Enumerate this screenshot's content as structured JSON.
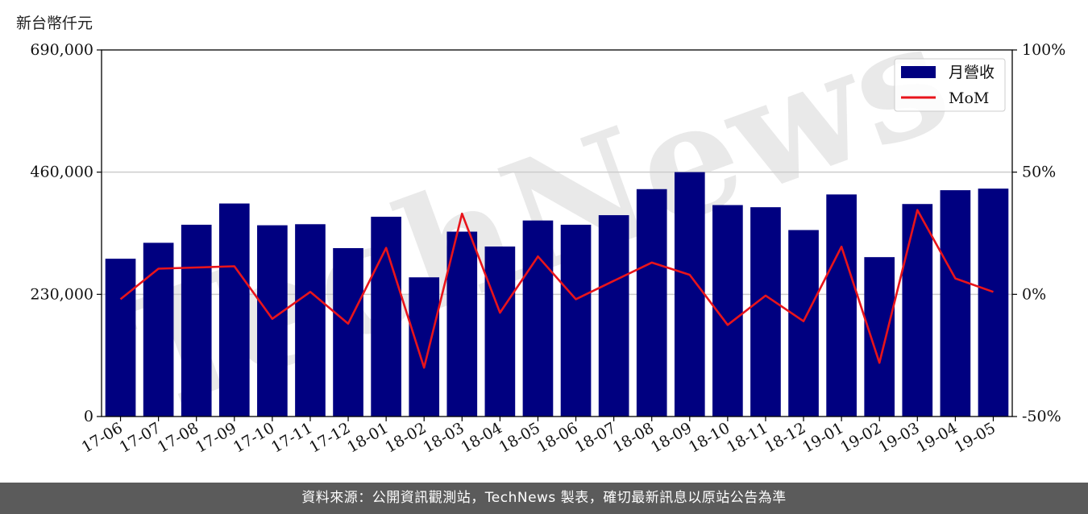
{
  "unit_label": "新台幣仟元",
  "footer_text": "資料來源：公開資訊觀測站，TechNews 製表，確切最新訊息以原站公告為準",
  "watermark": "TechNews",
  "colors": {
    "bar": "#000080",
    "line": "#e8141b",
    "grid": "#cccccc",
    "watermark": "#e6e6e6",
    "watermark_red": "#fbe3e3"
  },
  "chart_data": {
    "type": "bar",
    "categories": [
      "17-06",
      "17-07",
      "17-08",
      "17-09",
      "17-10",
      "17-11",
      "17-12",
      "18-01",
      "18-02",
      "18-03",
      "18-04",
      "18-05",
      "18-06",
      "18-07",
      "18-08",
      "18-09",
      "18-10",
      "18-11",
      "18-12",
      "19-01",
      "19-02",
      "19-03",
      "19-04",
      "19-05"
    ],
    "series": [
      {
        "name": "月營收",
        "type": "bar",
        "axis": "left",
        "values": [
          297000,
          327000,
          361000,
          401000,
          360000,
          362000,
          317000,
          376000,
          262000,
          348000,
          320000,
          369000,
          361000,
          379000,
          428000,
          460000,
          398000,
          394000,
          351000,
          418000,
          300000,
          400000,
          426000,
          429000
        ]
      },
      {
        "name": "MoM",
        "type": "line",
        "axis": "right",
        "unit": "%",
        "values": [
          -2,
          10.5,
          11,
          11.5,
          -10,
          1,
          -12,
          19,
          -30,
          33,
          -7.5,
          15.5,
          -2,
          5.5,
          13,
          8,
          -12.5,
          -0.5,
          -11,
          19.5,
          -28,
          34.5,
          6.5,
          1
        ]
      }
    ],
    "y_left": {
      "ylim": [
        0,
        690000
      ],
      "ticks": [
        0,
        230000,
        460000,
        690000
      ],
      "tick_labels": [
        "0",
        "230,000",
        "460,000",
        "690,000"
      ]
    },
    "y_right": {
      "ylim": [
        -50,
        100
      ],
      "ticks": [
        -50,
        0,
        50,
        100
      ],
      "tick_labels": [
        "-50%",
        "0%",
        "50%",
        "100%"
      ]
    },
    "legend": {
      "placement": "top-right",
      "entries": [
        "月營收",
        "MoM"
      ]
    },
    "grid": "horizontal"
  }
}
